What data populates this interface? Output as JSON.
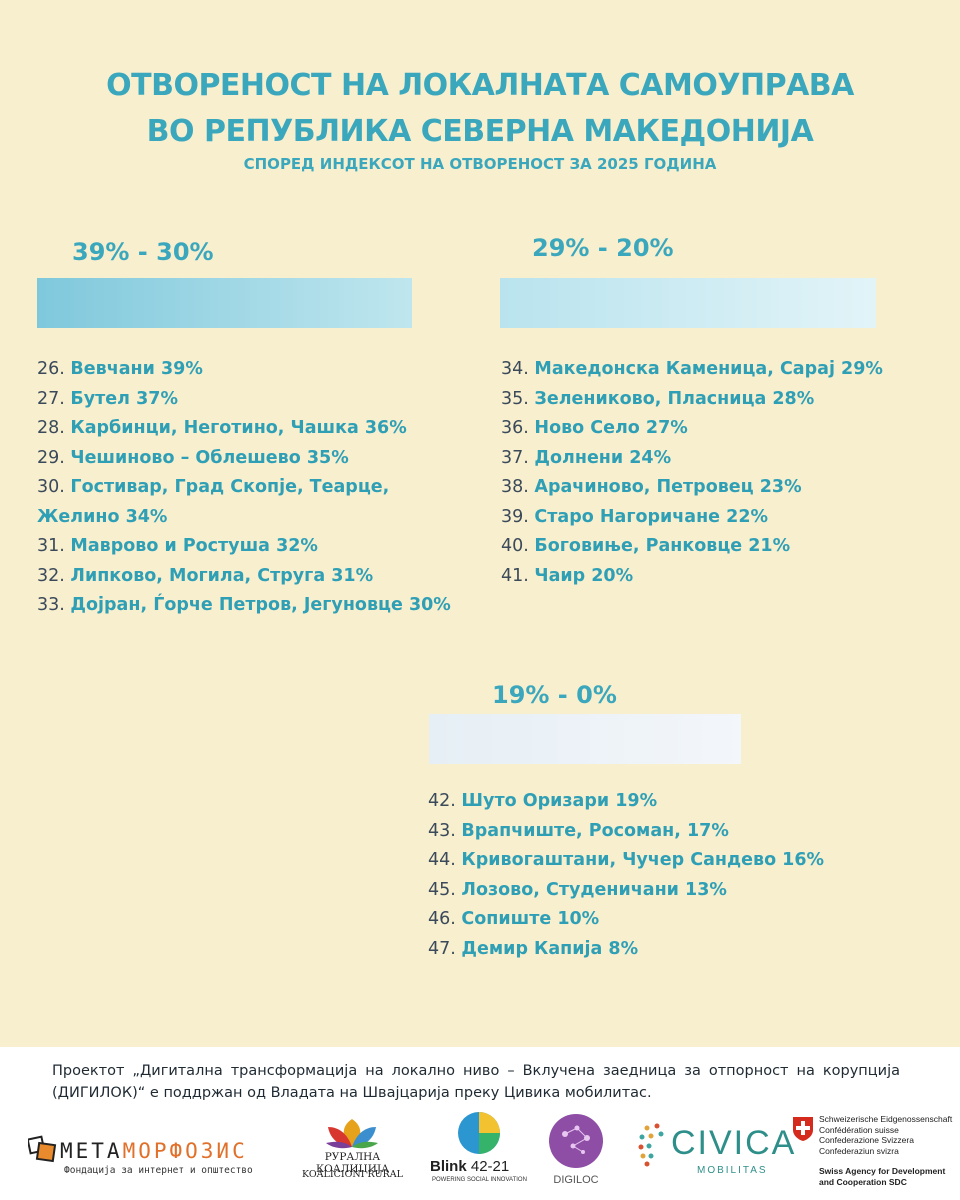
{
  "header": {
    "title_line1": "ОТВОРЕНОСТ НА ЛОКАЛНАТА САМОУПРАВА",
    "title_line2": "ВО РЕПУБЛИКА СЕВЕРНА МАКЕДОНИЈА",
    "subtitle": "СПОРЕД ИНДЕКСОТ НА ОТВОРЕНОСТ ЗА 2025 ГОДИНА"
  },
  "groups": [
    {
      "range": "39% - 30%",
      "items": [
        {
          "num": "26.",
          "name": "Вевчани 39%"
        },
        {
          "num": "27.",
          "name": "Бутел 37%"
        },
        {
          "num": "28.",
          "name": "Карбинци, Неготино, Чашка 36%"
        },
        {
          "num": "29.",
          "name": "Чешиново – Облешево 35%"
        },
        {
          "num": "30.",
          "name": "Гостивар, Град Скопје, Теарце,"
        },
        {
          "num": "",
          "name": "Желино 34%"
        },
        {
          "num": "31.",
          "name": "Маврово и Ростуша 32%"
        },
        {
          "num": "32.",
          "name": "Липково, Могила, Струга 31%"
        },
        {
          "num": "33.",
          "name": "Дојран, Ѓорче Петров, Јегуновце  30%"
        }
      ]
    },
    {
      "range": "29% - 20%",
      "items": [
        {
          "num": "34.",
          "name": "Македонска Каменица, Сарај 29%"
        },
        {
          "num": "35.",
          "name": "Зелениково, Пласница 28%"
        },
        {
          "num": "36.",
          "name": "Ново Село 27%"
        },
        {
          "num": "37.",
          "name": "Долнени 24%"
        },
        {
          "num": "38.",
          "name": "Арачиново, Петровец 23%"
        },
        {
          "num": "39.",
          "name": "Старо Нагоричане 22%"
        },
        {
          "num": "40.",
          "name": "Боговиње, Ранковце 21%"
        },
        {
          "num": "41.",
          "name": "Чаир 20%"
        }
      ]
    },
    {
      "range": "19% - 0%",
      "items": [
        {
          "num": "42.",
          "name": "Шуто Оризари 19%"
        },
        {
          "num": "43.",
          "name": "Врапчиште, Росоман, 17%"
        },
        {
          "num": "44.",
          "name": "Кривогаштани, Чучер Сандево 16%"
        },
        {
          "num": "45.",
          "name": "Лозово, Студеничани 13%"
        },
        {
          "num": "46.",
          "name": "Сопиште 10%"
        },
        {
          "num": "47.",
          "name": "Демир Капија 8%"
        }
      ]
    }
  ],
  "footer": {
    "note": "Проектот „Дигитална трансформација на локално ниво – Вклучена заедница за отпорност на корупција (ДИГИЛОК)“ е поддржан од Владата на Швајцарија преку Цивика мобилитас.",
    "logos": {
      "metamorphosis_a": "МЕТА",
      "metamorphosis_b": "МОРФОЗИС",
      "metamorphosis_sub": "Фондација за интернет и општество",
      "rural_line1": "РУРАЛНА КОАЛИЦИЈА",
      "rural_line2": "KOALICIONI RURAL",
      "blink_name": "Blink",
      "blink_num": "42-21",
      "blink_sub": "POWERING SOCIAL INNOVATION",
      "digiloc": "DIGILOC",
      "civica": "CIVICA",
      "civica_sub": "MOBILITAS",
      "swiss_1": "Schweizerische Eidgenossenschaft",
      "swiss_2": "Confédération suisse",
      "swiss_3": "Confederazione Svizzera",
      "swiss_4": "Confederaziun svizra",
      "swiss_5": "Swiss Agency for Development",
      "swiss_6": "and Cooperation SDC"
    }
  },
  "colors": {
    "background": "#f8efcf",
    "accent": "#3aa7bd"
  }
}
